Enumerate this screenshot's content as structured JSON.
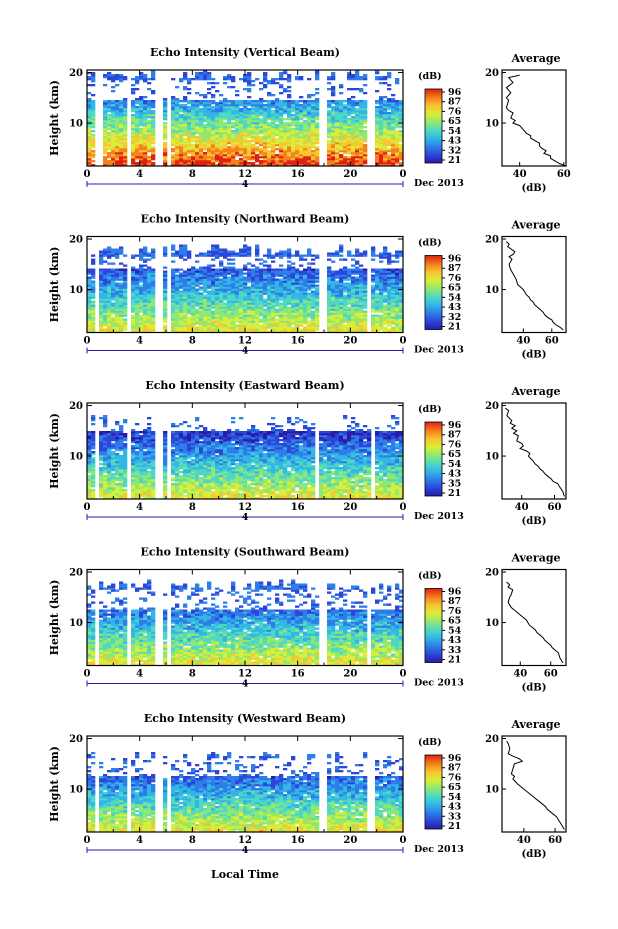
{
  "figure": {
    "xlabel": "Local Time",
    "date_marker": "4",
    "date_label": "Dec 2013",
    "cbar_unit": "(dB)",
    "profile_title": "Average",
    "profile_xlabel": "(dB)"
  },
  "colors": {
    "colormap": [
      "#2a1aa8",
      "#2b46d8",
      "#2f7de8",
      "#32b6e6",
      "#4fd8c4",
      "#8fe872",
      "#d8ee3a",
      "#f8c630",
      "#f4811e",
      "#e02014"
    ],
    "background": "#ffffff",
    "data_gap": "#ffffff"
  },
  "chart_data": [
    {
      "type": "heatmap",
      "title": "Echo Intensity (Vertical Beam)",
      "ylabel": "Height (km)",
      "xlim": [
        0,
        24
      ],
      "ylim": [
        1.5,
        20.5
      ],
      "xticks": [
        "0",
        "4",
        "8",
        "12",
        "16",
        "20",
        "0"
      ],
      "yticks": [
        "20",
        "10"
      ],
      "colorbar": {
        "ticks": [
          "96",
          "87",
          "76",
          "65",
          "54",
          "43",
          "32",
          "21"
        ],
        "range": [
          21,
          96
        ]
      },
      "gaps_hours": [
        [
          0.6,
          1.1
        ],
        [
          2.9,
          3.3
        ],
        [
          5.1,
          5.7
        ],
        [
          6.2,
          6.4
        ],
        [
          17.7,
          18.1
        ],
        [
          21.3,
          21.8
        ]
      ],
      "echo_top_km": 19.5,
      "sparse_band_km": [
        14.5,
        18.5
      ],
      "profile": {
        "title": "Average",
        "xlabel": "(dB)",
        "xlim": [
          32,
          61
        ],
        "xticks": [
          "40",
          "60"
        ],
        "ylim": [
          1.5,
          20.5
        ],
        "yticks": [
          "20",
          "10"
        ],
        "x": [
          40,
          35,
          37,
          34,
          36,
          34,
          35,
          34,
          35,
          37,
          36,
          38,
          37,
          40,
          41,
          42,
          43,
          45,
          45,
          47,
          49,
          49,
          50,
          52,
          51,
          54,
          54,
          56,
          58,
          61
        ],
        "y": [
          19.5,
          19.0,
          18.0,
          17.0,
          16.0,
          15.0,
          14.5,
          13.0,
          12.5,
          12.0,
          11.0,
          10.5,
          10.0,
          9.5,
          9.0,
          8.5,
          8.0,
          7.5,
          7.0,
          6.5,
          6.0,
          5.5,
          5.0,
          4.5,
          4.0,
          3.5,
          3.0,
          2.5,
          2.0,
          1.5
        ]
      }
    },
    {
      "type": "heatmap",
      "title": "Echo Intensity (Northward Beam)",
      "ylabel": "Height (km)",
      "xlim": [
        0,
        24
      ],
      "ylim": [
        1.5,
        20.5
      ],
      "xticks": [
        "0",
        "4",
        "8",
        "12",
        "16",
        "20",
        "0"
      ],
      "yticks": [
        "20",
        "10"
      ],
      "colorbar": {
        "ticks": [
          "96",
          "87",
          "76",
          "65",
          "54",
          "43",
          "32",
          "21"
        ],
        "range": [
          21,
          96
        ]
      },
      "gaps_hours": [
        [
          0.5,
          1.0
        ],
        [
          2.9,
          3.3
        ],
        [
          5.1,
          5.8
        ],
        [
          6.2,
          6.4
        ],
        [
          17.7,
          18.1
        ],
        [
          21.2,
          21.7
        ]
      ],
      "echo_top_km": 18.0,
      "sparse_band_km": [
        14.0,
        16.5
      ],
      "profile": {
        "title": "Average",
        "xlabel": "(dB)",
        "xlim": [
          25,
          70
        ],
        "xticks": [
          "40",
          "60"
        ],
        "ylim": [
          1.5,
          20.5
        ],
        "yticks": [
          "20",
          "10"
        ],
        "x": [
          28,
          30,
          29,
          34,
          33,
          30,
          32,
          30,
          31,
          33,
          35,
          36,
          38,
          40,
          41,
          42,
          44,
          45,
          47,
          48,
          50,
          52,
          54,
          55,
          57,
          60,
          61,
          63,
          66,
          68
        ],
        "y": [
          19.5,
          19.0,
          18.5,
          17.5,
          17.0,
          16.5,
          16.0,
          15.0,
          14.0,
          13.0,
          12.0,
          11.0,
          10.5,
          10.0,
          9.5,
          9.0,
          8.5,
          8.0,
          7.5,
          7.0,
          6.5,
          6.0,
          5.5,
          5.0,
          4.5,
          4.0,
          3.5,
          3.0,
          2.5,
          2.0
        ]
      }
    },
    {
      "type": "heatmap",
      "title": "Echo Intensity (Eastward Beam)",
      "ylabel": "Height (km)",
      "xlim": [
        0,
        24
      ],
      "ylim": [
        1.5,
        20.5
      ],
      "xticks": [
        "0",
        "4",
        "8",
        "12",
        "16",
        "20",
        "0"
      ],
      "yticks": [
        "20",
        "10"
      ],
      "colorbar": {
        "ticks": [
          "96",
          "87",
          "76",
          "65",
          "54",
          "43",
          "35",
          "21"
        ],
        "range": [
          21,
          96
        ]
      },
      "gaps_hours": [
        [
          0.5,
          1.0
        ],
        [
          2.9,
          3.3
        ],
        [
          5.1,
          5.7
        ],
        [
          6.2,
          6.4
        ],
        [
          17.3,
          17.6
        ],
        [
          21.5,
          21.9
        ]
      ],
      "echo_top_km": 17.0,
      "sparse_band_km": [
        15.0,
        17.5
      ],
      "profile": {
        "title": "Average",
        "xlabel": "(dB)",
        "xlim": [
          28,
          67
        ],
        "xticks": [
          "40",
          "60"
        ],
        "ylim": [
          1.5,
          20.5
        ],
        "yticks": [
          "20",
          "10"
        ],
        "x": [
          30,
          32,
          31,
          34,
          33,
          36,
          34,
          37,
          35,
          38,
          37,
          40,
          41,
          39,
          43,
          45,
          44,
          47,
          48,
          50,
          51,
          53,
          54,
          56,
          58,
          59,
          62,
          63,
          65,
          66
        ],
        "y": [
          19.5,
          19.0,
          18.0,
          17.0,
          16.5,
          16.0,
          15.5,
          15.0,
          14.5,
          14.0,
          13.0,
          12.5,
          12.0,
          11.5,
          11.0,
          10.5,
          10.0,
          9.0,
          8.5,
          8.0,
          7.5,
          7.0,
          6.5,
          6.0,
          5.5,
          5.0,
          4.5,
          4.0,
          3.0,
          2.0
        ]
      }
    },
    {
      "type": "heatmap",
      "title": "Echo Intensity (Southward Beam)",
      "ylabel": "Height (km)",
      "xlim": [
        0,
        24
      ],
      "ylim": [
        1.5,
        20.5
      ],
      "xticks": [
        "0",
        "4",
        "8",
        "12",
        "16",
        "20",
        "0"
      ],
      "yticks": [
        "20",
        "10"
      ],
      "colorbar": {
        "ticks": [
          "96",
          "87",
          "76",
          "65",
          "54",
          "43",
          "33",
          "21"
        ],
        "range": [
          21,
          96
        ]
      },
      "gaps_hours": [
        [
          0.5,
          1.0
        ],
        [
          2.9,
          3.3
        ],
        [
          5.1,
          5.7
        ],
        [
          6.2,
          6.4
        ],
        [
          17.7,
          18.1
        ],
        [
          21.2,
          21.7
        ]
      ],
      "echo_top_km": 17.5,
      "sparse_band_km": [
        12.5,
        16.5
      ],
      "profile": {
        "title": "Average",
        "xlabel": "(dB)",
        "xlim": [
          28,
          70
        ],
        "xticks": [
          "40",
          "60"
        ],
        "ylim": [
          1.5,
          20.5
        ],
        "yticks": [
          "20",
          "10"
        ],
        "x": [
          31,
          33,
          32,
          35,
          34,
          33,
          32,
          34,
          36,
          38,
          40,
          42,
          44,
          45,
          46,
          48,
          50,
          51,
          53,
          55,
          56,
          58,
          60,
          61,
          63,
          65,
          66,
          68
        ],
        "y": [
          18.0,
          17.5,
          17.0,
          16.5,
          15.5,
          15.0,
          14.0,
          13.0,
          12.5,
          12.0,
          11.5,
          11.0,
          10.5,
          10.0,
          9.5,
          9.0,
          8.5,
          8.0,
          7.5,
          7.0,
          6.5,
          6.0,
          5.5,
          5.0,
          4.5,
          4.0,
          3.0,
          2.0
        ]
      }
    },
    {
      "type": "heatmap",
      "title": "Echo Intensity (Westward Beam)",
      "ylabel": "Height (km)",
      "xlim": [
        0,
        24
      ],
      "ylim": [
        1.5,
        20.5
      ],
      "xticks": [
        "0",
        "4",
        "8",
        "12",
        "16",
        "20",
        "0"
      ],
      "yticks": [
        "20",
        "10"
      ],
      "colorbar": {
        "ticks": [
          "96",
          "87",
          "76",
          "65",
          "54",
          "43",
          "33",
          "21"
        ],
        "range": [
          21,
          96
        ]
      },
      "gaps_hours": [
        [
          0.5,
          1.0
        ],
        [
          2.9,
          3.3
        ],
        [
          5.1,
          5.7
        ],
        [
          6.2,
          6.4
        ],
        [
          17.7,
          18.1
        ],
        [
          21.4,
          21.9
        ]
      ],
      "echo_top_km": 16.5,
      "sparse_band_km": [
        12.5,
        16.0
      ],
      "profile": {
        "title": "Average",
        "xlabel": "(dB)",
        "xlim": [
          26,
          67
        ],
        "xticks": [
          "40",
          "60"
        ],
        "ylim": [
          1.5,
          20.5
        ],
        "yticks": [
          "20",
          "10"
        ],
        "x": [
          29,
          30,
          31,
          30,
          33,
          37,
          39,
          34,
          33,
          32,
          34,
          33,
          36,
          38,
          40,
          42,
          44,
          46,
          48,
          50,
          52,
          54,
          55,
          57,
          59,
          61,
          62,
          64,
          66
        ],
        "y": [
          19.5,
          19.0,
          18.0,
          17.0,
          16.5,
          16.0,
          15.5,
          15.0,
          14.0,
          13.0,
          12.5,
          12.0,
          11.0,
          10.5,
          10.0,
          9.5,
          9.0,
          8.5,
          8.0,
          7.5,
          7.0,
          6.5,
          6.0,
          5.5,
          5.0,
          4.5,
          4.0,
          3.0,
          2.0
        ]
      }
    }
  ]
}
